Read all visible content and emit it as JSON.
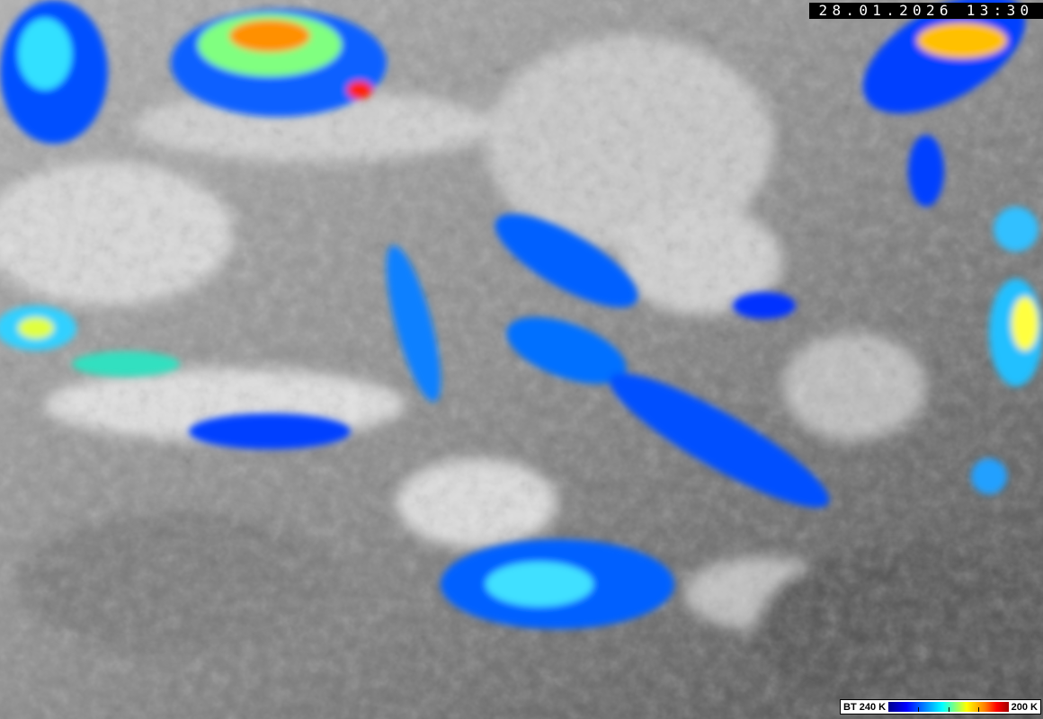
{
  "timestamp": "28.01.2026 13:30",
  "colorbar": {
    "left_label": "BT 240 K",
    "right_label": "200 K",
    "colors": [
      "#00008a",
      "#0000ff",
      "#0080ff",
      "#00ffff",
      "#ffff00",
      "#ff8000",
      "#ff0000",
      "#a00000"
    ]
  }
}
